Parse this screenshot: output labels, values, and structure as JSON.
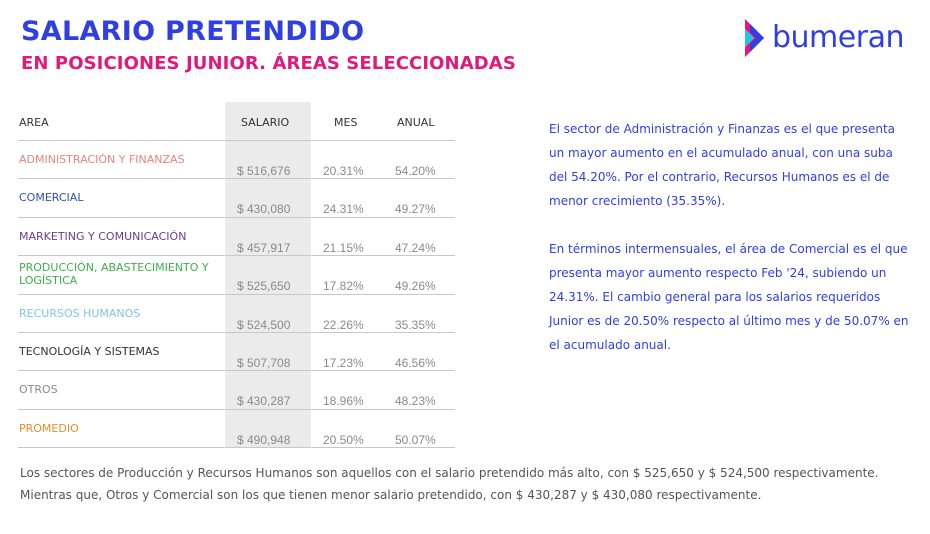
{
  "header": {
    "title": "SALARIO PRETENDIDO",
    "subtitle": "EN POSICIONES JUNIOR. ÁREAS SELECCIONADAS",
    "logo_text": "bumeran",
    "title_color": "#2f3fe0",
    "subtitle_color": "#e0197d"
  },
  "table": {
    "columns": [
      "AREA",
      "SALARIO",
      "MES",
      "ANUAL"
    ],
    "rows": [
      {
        "area": "ADMINISTRACIÓN Y FINANZAS",
        "color": "#e8837a",
        "salario": "$ 516,676",
        "mes": "20.31%",
        "anual": "54.20%"
      },
      {
        "area": "COMERCIAL",
        "color": "#2f52b8",
        "salario": "$ 430,080",
        "mes": "24.31%",
        "anual": "49.27%"
      },
      {
        "area": "MARKETING Y COMUNICACIÓN",
        "color": "#6a3d8f",
        "salario": "$ 457,917",
        "mes": "21.15%",
        "anual": "47.24%"
      },
      {
        "area": "PRODUCCIÓN, ABASTECIMIENTO Y LOGÍSTICA",
        "color": "#3fae49",
        "salario": "$ 525,650",
        "mes": "17.82%",
        "anual": "49.26%"
      },
      {
        "area": "RECURSOS HUMANOS",
        "color": "#7ec4e8",
        "salario": "$ 524,500",
        "mes": "22.26%",
        "anual": "35.35%"
      },
      {
        "area": "TECNOLOGÍA Y SISTEMAS",
        "color": "#333333",
        "salario": "$ 507,708",
        "mes": "17.23%",
        "anual": "46.56%"
      },
      {
        "area": "OTROS",
        "color": "#8a8a8a",
        "salario": "$ 430,287",
        "mes": "18.96%",
        "anual": "48.23%"
      },
      {
        "area": "PROMEDIO",
        "color": "#f08a2a",
        "salario": "$ 490,948",
        "mes": "20.50%",
        "anual": "50.07%"
      }
    ]
  },
  "side_text": {
    "paragraph_1": "El sector de Administración y Finanzas es el que presenta un mayor aumento en el acumulado anual, con una suba del 54.20%. Por el contrario, Recursos Humanos es el de menor crecimiento (35.35%).",
    "paragraph_2": "En términos intermensuales, el área de Comercial es el que presenta mayor aumento respecto Feb '24, subiendo un 24.31%. El cambio general para los salarios requeridos Junior es de 20.50% respecto al último mes y de 50.07% en el acumulado anual."
  },
  "footer": {
    "line_1": "Los sectores de Producción y Recursos Humanos son aquellos con el salario pretendido más alto, con $ 525,650 y $ 524,500 respectivamente.",
    "line_2": "Mientras que, Otros y Comercial son los que tienen menor salario pretendido, con $ 430,287 y $ 430,080 respectivamente."
  }
}
